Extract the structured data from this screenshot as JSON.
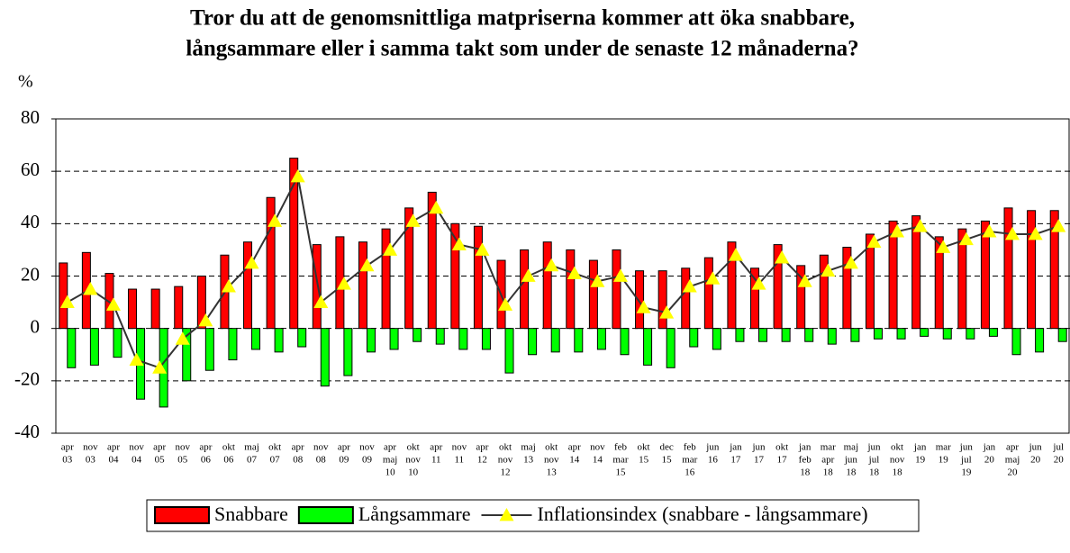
{
  "chart_data": {
    "type": "bar-line",
    "title": [
      "Tror du att de genomsnittliga matpriserna kommer att öka snabbare,",
      "långsammare eller i samma takt som under de senaste 12 månaderna?"
    ],
    "y_label": "%",
    "categories": [
      [
        "apr",
        "03"
      ],
      [
        "nov",
        "03"
      ],
      [
        "apr",
        "04"
      ],
      [
        "nov",
        "04"
      ],
      [
        "apr",
        "05"
      ],
      [
        "nov",
        "05"
      ],
      [
        "apr",
        "06"
      ],
      [
        "okt",
        "06"
      ],
      [
        "maj",
        "07"
      ],
      [
        "okt",
        "07"
      ],
      [
        "apr",
        "08"
      ],
      [
        "nov",
        "08"
      ],
      [
        "apr",
        "09"
      ],
      [
        "nov",
        "09"
      ],
      [
        "apr",
        "maj",
        "10"
      ],
      [
        "okt",
        "nov",
        "10"
      ],
      [
        "apr",
        "11"
      ],
      [
        "nov",
        "11"
      ],
      [
        "apr",
        "12"
      ],
      [
        "okt",
        "nov",
        "12"
      ],
      [
        "maj",
        "13"
      ],
      [
        "okt",
        "nov",
        "13"
      ],
      [
        "apr",
        "14"
      ],
      [
        "nov",
        "14"
      ],
      [
        "feb",
        "mar",
        "15"
      ],
      [
        "okt",
        "15"
      ],
      [
        "dec",
        "15"
      ],
      [
        "feb",
        "mar",
        "16"
      ],
      [
        "jun",
        "16"
      ],
      [
        "jan",
        "17"
      ],
      [
        "jun",
        "17"
      ],
      [
        "okt",
        "17"
      ],
      [
        "jan",
        "feb",
        "18"
      ],
      [
        "mar",
        "apr",
        "18"
      ],
      [
        "maj",
        "jun",
        "18"
      ],
      [
        "jun",
        "jul",
        "18"
      ],
      [
        "okt",
        "nov",
        "18"
      ],
      [
        "jan",
        "19"
      ],
      [
        "mar",
        "19"
      ],
      [
        "jun",
        "jul",
        "19"
      ],
      [
        "jan",
        "20"
      ],
      [
        "apr",
        "maj",
        "20"
      ],
      [
        "jun",
        "20"
      ],
      [
        "jul",
        "20"
      ]
    ],
    "series": [
      {
        "name": "Snabbare",
        "type": "bar",
        "color": "#ff0000",
        "values": [
          25,
          29,
          21,
          15,
          15,
          16,
          20,
          28,
          33,
          50,
          65,
          32,
          35,
          33,
          38,
          46,
          52,
          40,
          39,
          26,
          30,
          33,
          30,
          26,
          30,
          22,
          22,
          23,
          27,
          33,
          23,
          32,
          24,
          28,
          31,
          36,
          41,
          43,
          35,
          38,
          41,
          46,
          45,
          45
        ]
      },
      {
        "name": "Långsammare",
        "type": "bar",
        "color": "#00ff00",
        "values": [
          -15,
          -14,
          -11,
          -27,
          -30,
          -20,
          -16,
          -12,
          -8,
          -9,
          -7,
          -22,
          -18,
          -9,
          -8,
          -5,
          -6,
          -8,
          -8,
          -17,
          -10,
          -9,
          -9,
          -8,
          -10,
          -14,
          -15,
          -7,
          -8,
          -5,
          -5,
          -5,
          -5,
          -6,
          -5,
          -4,
          -4,
          -3,
          -4,
          -4,
          -3,
          -10,
          -9,
          -5
        ]
      },
      {
        "name": "Inflationsindex (snabbare - långsammare)",
        "type": "line",
        "color": "#333333",
        "marker_color": "#ffff00",
        "values": [
          10,
          15,
          9,
          -12,
          -15,
          -4,
          3,
          16,
          25,
          41,
          58,
          10,
          17,
          24,
          30,
          41,
          46,
          32,
          30,
          9,
          20,
          24,
          21,
          18,
          20,
          8,
          6,
          16,
          19,
          28,
          17,
          27,
          18,
          22,
          25,
          33,
          37,
          39,
          31,
          34,
          37,
          36,
          36,
          39
        ]
      }
    ],
    "ylim": [
      -40,
      80
    ],
    "yticks": [
      -40,
      -20,
      0,
      20,
      40,
      60,
      80
    ],
    "grid": true,
    "legend": "bottom"
  }
}
